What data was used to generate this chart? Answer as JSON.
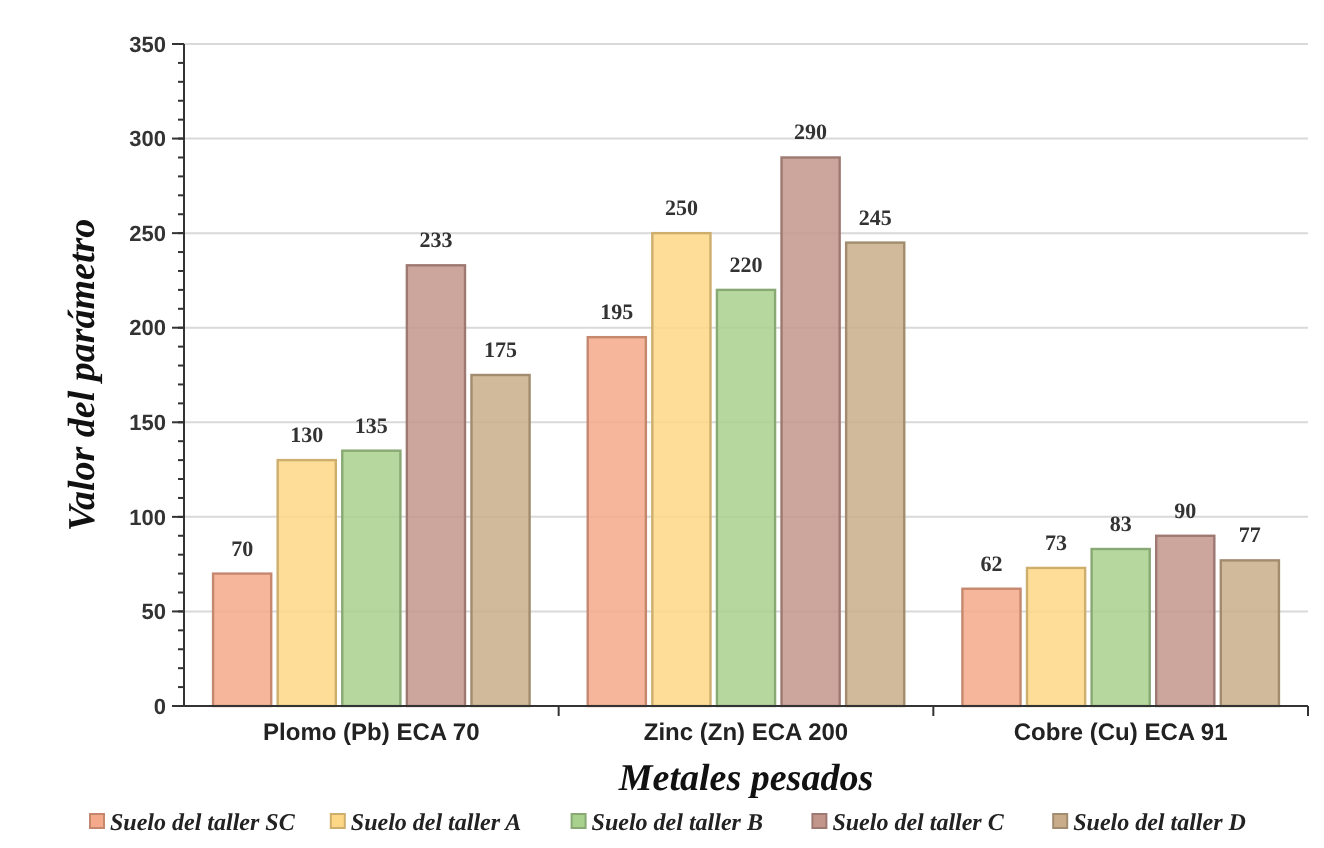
{
  "chart_data": {
    "type": "bar",
    "xlabel": "Metales pesados",
    "ylabel": "Valor del parámetro",
    "categories": [
      "Plomo (Pb) ECA 70",
      "Zinc (Zn) ECA 200",
      "Cobre (Cu) ECA 91"
    ],
    "series": [
      {
        "name": "Suelo del taller SC",
        "color": "#f4a98a",
        "values": [
          70,
          195,
          62
        ]
      },
      {
        "name": "Suelo del taller A",
        "color": "#fed786",
        "values": [
          130,
          250,
          73
        ]
      },
      {
        "name": "Suelo del taller B",
        "color": "#a9d18e",
        "values": [
          135,
          220,
          83
        ]
      },
      {
        "name": "Suelo del taller C",
        "color": "#c3968c",
        "values": [
          233,
          290,
          90
        ]
      },
      {
        "name": "Suelo del taller D",
        "color": "#c9ad8a",
        "values": [
          175,
          245,
          77
        ]
      }
    ],
    "ylim": [
      0,
      350
    ],
    "yticks": [
      0,
      50,
      100,
      150,
      200,
      250,
      300,
      350
    ],
    "grid": "y",
    "legend": "bottom",
    "data_labels": true
  }
}
